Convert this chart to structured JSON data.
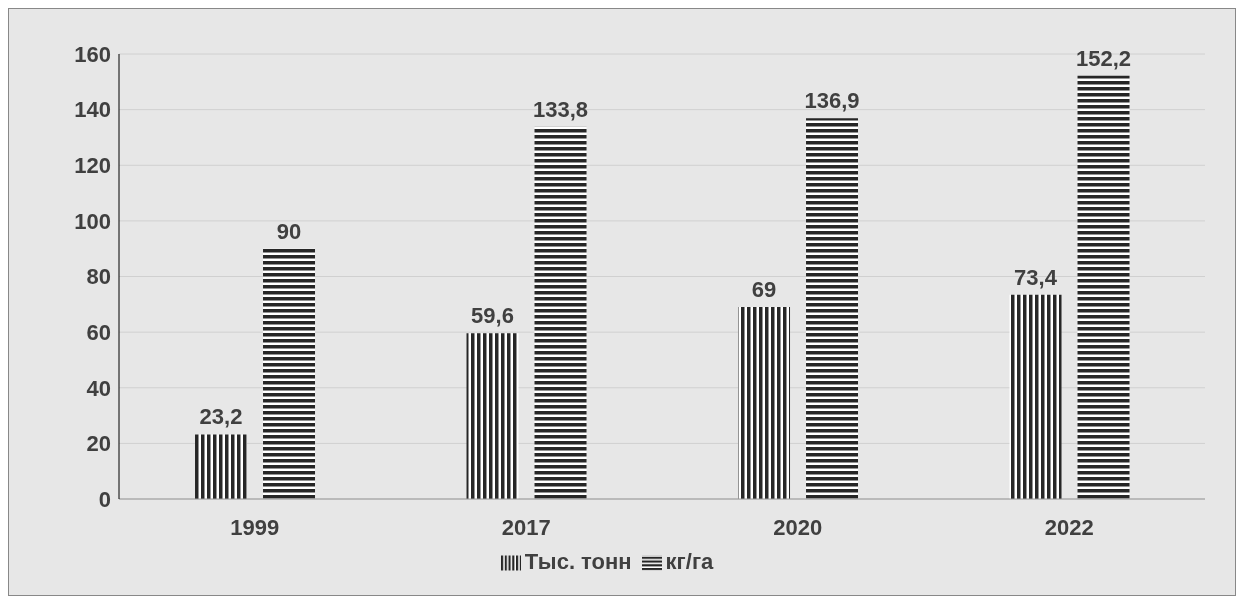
{
  "chart_data": {
    "type": "bar",
    "categories": [
      "1999",
      "2017",
      "2020",
      "2022"
    ],
    "series": [
      {
        "name": "Тыс. тонн",
        "color": "#262626",
        "values": [
          23.2,
          59.6,
          69,
          73.4
        ],
        "value_labels": [
          "23,2",
          "59,6",
          "69",
          "73,4"
        ]
      },
      {
        "name": "кг/га",
        "color": "#262626",
        "values": [
          90,
          133.8,
          136.9,
          152.2
        ],
        "value_labels": [
          "90",
          "133,8",
          "136,9",
          "152,2"
        ]
      }
    ],
    "ylim": [
      0,
      160
    ],
    "yticks": [
      0,
      20,
      40,
      60,
      80,
      100,
      120,
      140,
      160
    ],
    "grid": "y",
    "legend": "bottom"
  }
}
